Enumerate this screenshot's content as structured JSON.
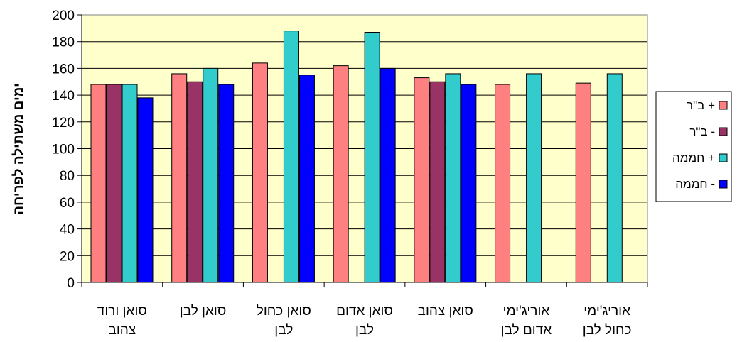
{
  "chart_data": {
    "type": "bar",
    "title": "",
    "xlabel": "",
    "ylabel": "ימים משתילה לפריחה",
    "ylim": [
      0,
      200
    ],
    "yticks": [
      0,
      20,
      40,
      60,
      80,
      100,
      120,
      140,
      160,
      180,
      200
    ],
    "grid": true,
    "legend_position": "right",
    "plot_background": "#FFFFCC",
    "categories": [
      [
        "סואן ורוד",
        "צהוב"
      ],
      [
        "סואן לבן"
      ],
      [
        "סואן כחול",
        "לבן"
      ],
      [
        "סואן אדום",
        "לבן"
      ],
      [
        "סואן צהוב"
      ],
      [
        "אוריג'ימי",
        "אדום לבן"
      ],
      [
        "אוריג'ימי",
        "כחול לבן"
      ]
    ],
    "series": [
      {
        "name": "ב\"ר +",
        "color": "#FF8080",
        "values": [
          148,
          156,
          164,
          162,
          153,
          148,
          149
        ]
      },
      {
        "name": "ב\"ר -",
        "color": "#993366",
        "values": [
          148,
          150,
          null,
          null,
          150,
          null,
          null
        ]
      },
      {
        "name": "חממה +",
        "color": "#33CCCC",
        "values": [
          148,
          160,
          188,
          187,
          156,
          156,
          156
        ]
      },
      {
        "name": "חממה -",
        "color": "#0000FF",
        "values": [
          138,
          148,
          155,
          160,
          148,
          null,
          null
        ]
      }
    ]
  }
}
